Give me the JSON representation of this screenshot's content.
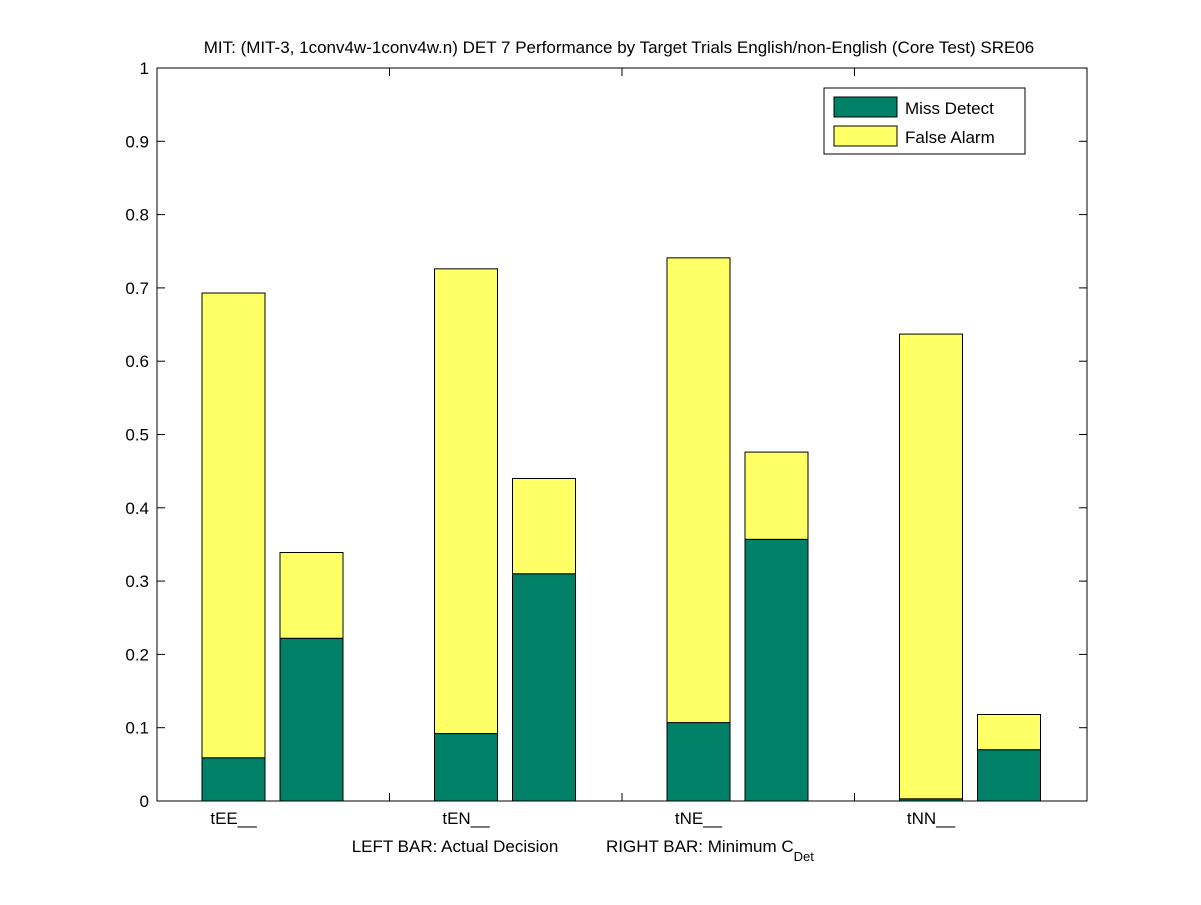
{
  "chart_data": {
    "type": "bar",
    "stacked": true,
    "title": "MIT: (MIT-3, 1conv4w-1conv4w.n) DET 7 Performance by Target Trials English/non-English (Core Test) SRE06",
    "xlabel_left": "LEFT BAR: Actual Decision",
    "xlabel_right_prefix": "RIGHT BAR: Minimum C",
    "xlabel_right_subscript": "Det",
    "ylabel": "",
    "ylim": [
      0,
      1
    ],
    "yticks": [
      "0",
      "0.1",
      "0.2",
      "0.3",
      "0.4",
      "0.5",
      "0.6",
      "0.7",
      "0.8",
      "0.9",
      "1"
    ],
    "categories": [
      "tEE__",
      "tEN__",
      "tNE__",
      "tNN__"
    ],
    "legend_position": "top-right",
    "series": [
      {
        "name": "Miss Detect",
        "color": "#008066",
        "actual_decision": [
          0.059,
          0.092,
          0.107,
          0.003
        ],
        "minimum_cdet": [
          0.222,
          0.31,
          0.357,
          0.07
        ]
      },
      {
        "name": "False Alarm",
        "color": "#ffff66",
        "actual_decision": [
          0.634,
          0.634,
          0.634,
          0.634
        ],
        "minimum_cdet": [
          0.117,
          0.13,
          0.119,
          0.048
        ]
      }
    ],
    "grid": false
  }
}
